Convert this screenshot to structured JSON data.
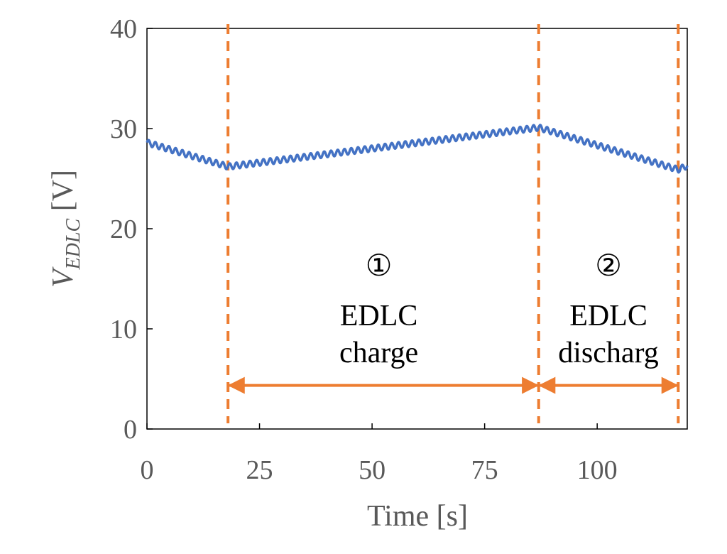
{
  "chart_data": {
    "type": "line",
    "xlabel": "Time [s]",
    "ylabel": {
      "main": "V",
      "subscript": "EDLC",
      "unit": " [V]"
    },
    "xlim": [
      0,
      120
    ],
    "ylim": [
      0,
      40
    ],
    "xticks": [
      0,
      25,
      50,
      75,
      100
    ],
    "yticks": [
      0,
      10,
      20,
      30,
      40
    ],
    "grid": false,
    "series": [
      {
        "color": "#4472C4",
        "ripple_amplitude": 0.3,
        "ripple_period_s": 1.5,
        "points": [
          {
            "x": 0,
            "y": 28.6
          },
          {
            "x": 18,
            "y": 26.2
          },
          {
            "x": 87,
            "y": 30.1
          },
          {
            "x": 118,
            "y": 25.9
          },
          {
            "x": 120,
            "y": 26.3
          }
        ]
      }
    ],
    "markers": {
      "color": "#ED7D31",
      "vlines": [
        18,
        87,
        118
      ],
      "arrows": [
        {
          "from": 18,
          "to": 87,
          "y": 4.0
        },
        {
          "from": 87,
          "to": 118,
          "y": 4.0
        }
      ]
    },
    "annotations": [
      {
        "symbol": "①",
        "line1": "EDLC",
        "line2": "charge",
        "x": 51.5
      },
      {
        "symbol": "②",
        "line1": "EDLC",
        "line2": "discharg",
        "x": 102.5
      }
    ]
  }
}
